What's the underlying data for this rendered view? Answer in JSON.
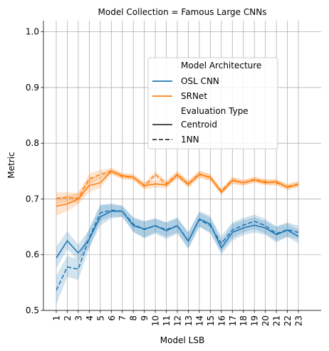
{
  "chart_data": {
    "type": "line",
    "title": "Model Collection = Famous Large CNNs",
    "xlabel": "Model LSB",
    "ylabel": "Metric",
    "ylim": [
      0.5,
      1.02
    ],
    "yticks": [
      "0.5",
      "0.6",
      "0.7",
      "0.8",
      "0.9",
      "1.0"
    ],
    "x": [
      1,
      2,
      3,
      4,
      5,
      6,
      7,
      8,
      9,
      10,
      11,
      12,
      13,
      14,
      15,
      16,
      17,
      18,
      19,
      20,
      21,
      22,
      23
    ],
    "xticklabels": [
      "1",
      "2",
      "3",
      "4",
      "5",
      "6",
      "7",
      "8",
      "9",
      "10",
      "11",
      "12",
      "13",
      "14",
      "15",
      "16",
      "17",
      "18",
      "19",
      "20",
      "21",
      "22",
      "23"
    ],
    "grid": true,
    "legend_position": "upper-center-right",
    "legend": {
      "hue_title": "Model Architecture",
      "style_title": "Evaluation Type",
      "hue_entries": [
        {
          "label": "OSL CNN",
          "color": "#1f77b4"
        },
        {
          "label": "SRNet",
          "color": "#ff7f0e"
        }
      ],
      "style_entries": [
        {
          "label": "Centroid",
          "dash": "solid"
        },
        {
          "label": "1NN",
          "dash": "dashed"
        }
      ]
    },
    "series": [
      {
        "name": "OSL CNN - Centroid",
        "color": "#1f77b4",
        "dash": "solid",
        "values": [
          0.594,
          0.625,
          0.603,
          0.628,
          0.668,
          0.678,
          0.678,
          0.652,
          0.646,
          0.652,
          0.643,
          0.652,
          0.624,
          0.664,
          0.655,
          0.612,
          0.64,
          0.648,
          0.653,
          0.648,
          0.636,
          0.644,
          0.633
        ],
        "lower": [
          0.575,
          0.61,
          0.59,
          0.612,
          0.652,
          0.665,
          0.668,
          0.64,
          0.63,
          0.638,
          0.628,
          0.638,
          0.61,
          0.65,
          0.64,
          0.6,
          0.625,
          0.635,
          0.64,
          0.635,
          0.622,
          0.632,
          0.62
        ],
        "upper": [
          0.615,
          0.642,
          0.618,
          0.645,
          0.688,
          0.69,
          0.688,
          0.665,
          0.66,
          0.665,
          0.658,
          0.667,
          0.64,
          0.678,
          0.67,
          0.625,
          0.655,
          0.662,
          0.667,
          0.66,
          0.65,
          0.656,
          0.645
        ]
      },
      {
        "name": "OSL CNN - 1NN",
        "color": "#1f77b4",
        "dash": "dashed",
        "values": [
          0.536,
          0.578,
          0.574,
          0.63,
          0.675,
          0.68,
          0.678,
          0.655,
          0.645,
          0.652,
          0.645,
          0.652,
          0.625,
          0.663,
          0.652,
          0.62,
          0.644,
          0.653,
          0.66,
          0.652,
          0.638,
          0.645,
          0.64
        ],
        "lower": [
          0.51,
          0.56,
          0.555,
          0.612,
          0.66,
          0.668,
          0.668,
          0.642,
          0.63,
          0.64,
          0.632,
          0.64,
          0.612,
          0.65,
          0.638,
          0.605,
          0.63,
          0.64,
          0.646,
          0.638,
          0.625,
          0.632,
          0.628
        ],
        "upper": [
          0.562,
          0.598,
          0.592,
          0.648,
          0.69,
          0.692,
          0.688,
          0.668,
          0.66,
          0.665,
          0.658,
          0.665,
          0.64,
          0.676,
          0.666,
          0.634,
          0.658,
          0.666,
          0.672,
          0.664,
          0.651,
          0.658,
          0.652
        ]
      },
      {
        "name": "SRNet - Centroid",
        "color": "#ff7f0e",
        "dash": "solid",
        "values": [
          0.687,
          0.691,
          0.7,
          0.724,
          0.729,
          0.75,
          0.742,
          0.739,
          0.724,
          0.727,
          0.725,
          0.743,
          0.726,
          0.744,
          0.739,
          0.712,
          0.733,
          0.729,
          0.734,
          0.729,
          0.731,
          0.721,
          0.726
        ],
        "lower": [
          0.67,
          0.678,
          0.69,
          0.712,
          0.72,
          0.744,
          0.737,
          0.734,
          0.718,
          0.72,
          0.719,
          0.737,
          0.72,
          0.738,
          0.733,
          0.707,
          0.727,
          0.724,
          0.729,
          0.724,
          0.726,
          0.716,
          0.721
        ],
        "upper": [
          0.702,
          0.706,
          0.712,
          0.738,
          0.74,
          0.756,
          0.747,
          0.744,
          0.73,
          0.734,
          0.731,
          0.749,
          0.732,
          0.75,
          0.745,
          0.717,
          0.739,
          0.734,
          0.739,
          0.734,
          0.736,
          0.726,
          0.731
        ]
      },
      {
        "name": "SRNet - 1NN",
        "color": "#ff7f0e",
        "dash": "dashed",
        "values": [
          0.701,
          0.703,
          0.701,
          0.736,
          0.744,
          0.75,
          0.74,
          0.739,
          0.723,
          0.744,
          0.727,
          0.744,
          0.727,
          0.745,
          0.738,
          0.714,
          0.734,
          0.729,
          0.735,
          0.731,
          0.729,
          0.722,
          0.727
        ],
        "lower": [
          0.69,
          0.694,
          0.692,
          0.726,
          0.736,
          0.745,
          0.735,
          0.734,
          0.717,
          0.738,
          0.721,
          0.738,
          0.721,
          0.739,
          0.732,
          0.709,
          0.728,
          0.724,
          0.73,
          0.726,
          0.724,
          0.717,
          0.722
        ],
        "upper": [
          0.712,
          0.712,
          0.71,
          0.746,
          0.752,
          0.755,
          0.745,
          0.744,
          0.729,
          0.75,
          0.733,
          0.75,
          0.733,
          0.751,
          0.744,
          0.719,
          0.74,
          0.734,
          0.74,
          0.736,
          0.734,
          0.727,
          0.732
        ]
      }
    ]
  }
}
